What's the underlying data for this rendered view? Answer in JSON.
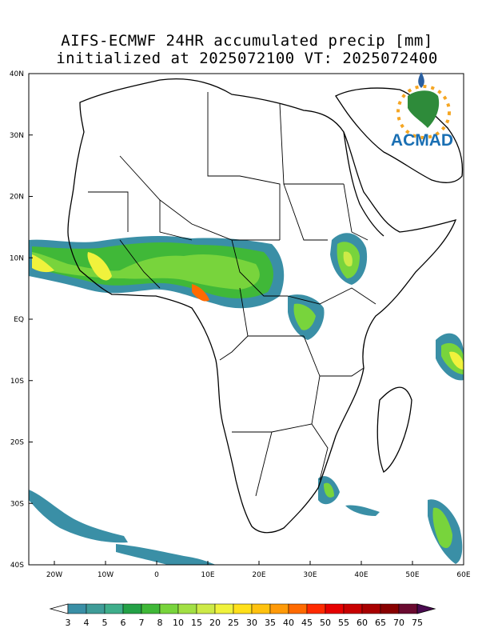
{
  "title": {
    "line1": "AIFS-ECMWF 24HR accumulated precip [mm]",
    "line2": "initialized at 2025072100 VT: 2025072400"
  },
  "logo": {
    "text": "ACMAD"
  },
  "axes": {
    "lat_labels": [
      "40N",
      "30N",
      "20N",
      "10N",
      "EQ",
      "10S",
      "20S",
      "30S",
      "40S"
    ],
    "lon_labels": [
      "20W",
      "10W",
      "0",
      "10E",
      "20E",
      "30E",
      "40E",
      "50E",
      "60E"
    ]
  },
  "colorbar": {
    "labels": [
      "3",
      "4",
      "5",
      "6",
      "7",
      "8",
      "10",
      "15",
      "20",
      "25",
      "30",
      "35",
      "40",
      "45",
      "50",
      "55",
      "60",
      "65",
      "70",
      "75"
    ],
    "colors": [
      "#3a8fa6",
      "#3f9c98",
      "#3fae8b",
      "#24a147",
      "#40b838",
      "#78d43c",
      "#a2e044",
      "#cdea47",
      "#f0f23c",
      "#ffe01a",
      "#ffc20f",
      "#ff9a08",
      "#ff6a00",
      "#ff2a00",
      "#e60000",
      "#c80000",
      "#a80000",
      "#880000",
      "#6a0a30",
      "#4a0a50"
    ]
  },
  "legend_info": {
    "colors": {
      "ocean": "#ffffff",
      "precip_light": "#3a8fa6",
      "precip_mid": "#78d43c",
      "precip_heavy": "#ff9a08"
    }
  }
}
